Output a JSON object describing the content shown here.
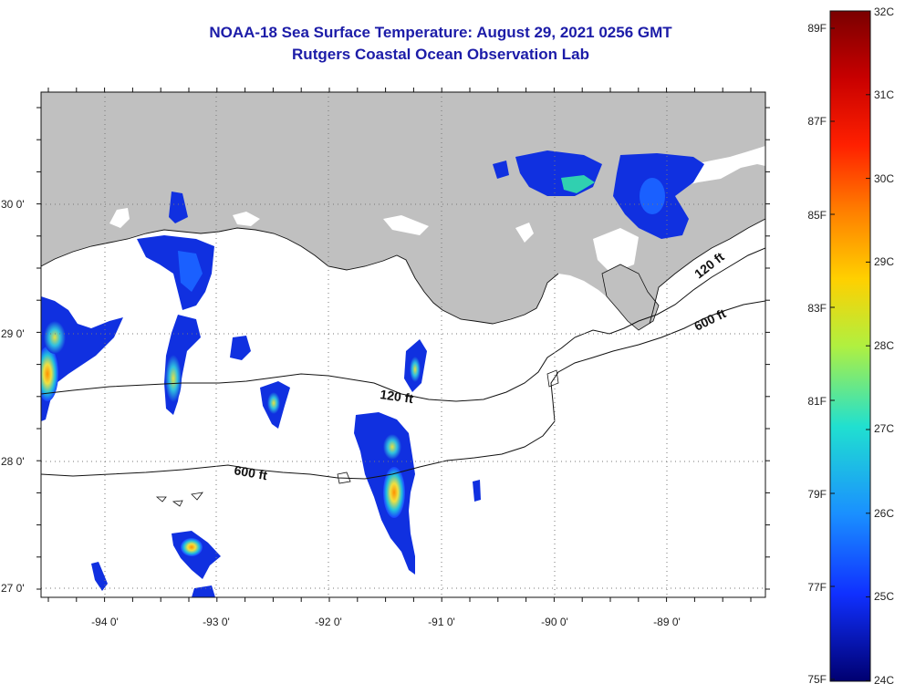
{
  "title": {
    "line1": "NOAA-18 Sea Surface Temperature:  August 29, 2021 0256 GMT",
    "line2": "Rutgers Coastal Ocean Observation Lab"
  },
  "map": {
    "lon_labels": [
      "-94 0'",
      "-93 0'",
      "-92 0'",
      "-91 0'",
      "-90 0'",
      "-89 0'"
    ],
    "lat_labels": [
      "30 0'",
      "29 0'",
      "28 0'",
      "27 0'"
    ],
    "contour_labels": {
      "c120_a": "120 ft",
      "c120_b": "120 ft",
      "c600_a": "600 ft",
      "c600_b": "600 ft"
    },
    "land_color": "#c0c0c0",
    "ocean_color": "#ffffff"
  },
  "colorbar": {
    "celsius": [
      "32C",
      "31C",
      "30C",
      "29C",
      "28C",
      "27C",
      "26C",
      "25C",
      "24C"
    ],
    "fahrenheit": [
      "89F",
      "87F",
      "85F",
      "83F",
      "81F",
      "79F",
      "77F",
      "75F"
    ],
    "colors": [
      "#7a0000",
      "#e00000",
      "#ff6a00",
      "#ffd000",
      "#b0f040",
      "#20e0c0",
      "#1aa0ff",
      "#1030ff",
      "#000080"
    ]
  }
}
